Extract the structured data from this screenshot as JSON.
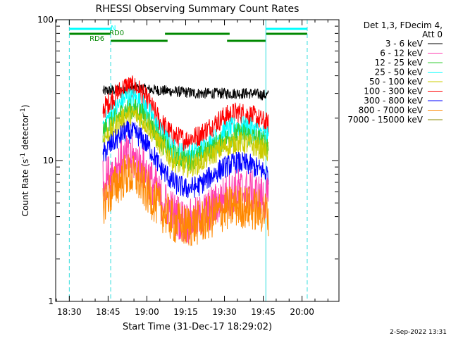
{
  "chart_data": {
    "type": "line",
    "title": "RHESSI Observing Summary Count Rates",
    "xlabel": "Start Time (31-Dec-17 18:29:02)",
    "ylabel": "Count Rate (s",
    "ylabel_sup": "-1",
    "ylabel_mid": " detector",
    "ylabel_end": ")",
    "y_scale": "log",
    "ylim": [
      1,
      100
    ],
    "y_ticks": [
      "1",
      "10",
      "100"
    ],
    "xlim_minutes_of_day": [
      1105,
      1214
    ],
    "x_ticks": [
      {
        "t": 1110,
        "label": "18:30"
      },
      {
        "t": 1125,
        "label": "18:45"
      },
      {
        "t": 1140,
        "label": "19:00"
      },
      {
        "t": 1155,
        "label": "19:15"
      },
      {
        "t": 1170,
        "label": "19:30"
      },
      {
        "t": 1185,
        "label": "19:45"
      },
      {
        "t": 1200,
        "label": "20:00"
      }
    ],
    "legend_header": [
      "Det 1,3, FDecim 4,",
      "Att 0"
    ],
    "legend_position": "right",
    "data_start": "18:43",
    "data_end": "19:47",
    "series": [
      {
        "name": "3 - 6 keV",
        "color": "#000000",
        "points": [
          [
            "18:43",
            31
          ],
          [
            "18:50",
            32
          ],
          [
            "18:55",
            33
          ],
          [
            "19:00",
            32
          ],
          [
            "19:10",
            31
          ],
          [
            "19:20",
            30
          ],
          [
            "19:30",
            30
          ],
          [
            "19:40",
            30
          ],
          [
            "19:47",
            29
          ]
        ]
      },
      {
        "name": "6 - 12 keV",
        "color": "#ff3fb0",
        "points": [
          [
            "18:43",
            7
          ],
          [
            "18:47",
            8.5
          ],
          [
            "18:52",
            10.5
          ],
          [
            "18:56",
            10
          ],
          [
            "19:00",
            8
          ],
          [
            "19:05",
            5.5
          ],
          [
            "19:10",
            4.3
          ],
          [
            "19:15",
            3.6
          ],
          [
            "19:20",
            3.9
          ],
          [
            "19:25",
            4.6
          ],
          [
            "19:30",
            5.5
          ],
          [
            "19:35",
            6.2
          ],
          [
            "19:40",
            6
          ],
          [
            "19:47",
            5.2
          ]
        ]
      },
      {
        "name": "12 - 25 keV",
        "color": "#33cc33",
        "points": [
          [
            "18:43",
            16
          ],
          [
            "18:47",
            19
          ],
          [
            "18:52",
            23
          ],
          [
            "18:56",
            23
          ],
          [
            "19:00",
            20
          ],
          [
            "19:05",
            14
          ],
          [
            "19:10",
            11
          ],
          [
            "19:15",
            10
          ],
          [
            "19:20",
            10.5
          ],
          [
            "19:25",
            12
          ],
          [
            "19:30",
            14
          ],
          [
            "19:35",
            15.5
          ],
          [
            "19:40",
            15
          ],
          [
            "19:47",
            13
          ]
        ]
      },
      {
        "name": "25 - 50 keV",
        "color": "#00ffff",
        "points": [
          [
            "18:43",
            18
          ],
          [
            "18:47",
            22
          ],
          [
            "18:52",
            28
          ],
          [
            "18:56",
            27.5
          ],
          [
            "19:00",
            23
          ],
          [
            "19:05",
            16
          ],
          [
            "19:10",
            12
          ],
          [
            "19:15",
            11
          ],
          [
            "19:20",
            11.5
          ],
          [
            "19:25",
            13.5
          ],
          [
            "19:30",
            16
          ],
          [
            "19:35",
            17.5
          ],
          [
            "19:40",
            17
          ],
          [
            "19:47",
            14.5
          ]
        ]
      },
      {
        "name": "50 - 100 keV",
        "color": "#cccc00",
        "points": [
          [
            "18:43",
            14
          ],
          [
            "18:47",
            17
          ],
          [
            "18:52",
            21
          ],
          [
            "18:56",
            21
          ],
          [
            "19:00",
            18
          ],
          [
            "19:05",
            13
          ],
          [
            "19:10",
            10
          ],
          [
            "19:15",
            9
          ],
          [
            "19:20",
            9.5
          ],
          [
            "19:25",
            11
          ],
          [
            "19:30",
            12.5
          ],
          [
            "19:35",
            13.5
          ],
          [
            "19:40",
            13
          ],
          [
            "19:47",
            11.5
          ]
        ]
      },
      {
        "name": "100 - 300 keV",
        "color": "#ff0000",
        "points": [
          [
            "18:43",
            23
          ],
          [
            "18:47",
            28
          ],
          [
            "18:52",
            34
          ],
          [
            "18:56",
            33
          ],
          [
            "19:00",
            27
          ],
          [
            "19:05",
            19
          ],
          [
            "19:10",
            15
          ],
          [
            "19:15",
            14
          ],
          [
            "19:20",
            15
          ],
          [
            "19:25",
            17.5
          ],
          [
            "19:30",
            20.5
          ],
          [
            "19:35",
            22
          ],
          [
            "19:40",
            21
          ],
          [
            "19:47",
            18
          ]
        ]
      },
      {
        "name": "300 - 800 keV",
        "color": "#0000ff",
        "points": [
          [
            "18:43",
            11
          ],
          [
            "18:47",
            13.5
          ],
          [
            "18:52",
            16
          ],
          [
            "18:56",
            15.5
          ],
          [
            "19:00",
            13
          ],
          [
            "19:05",
            9
          ],
          [
            "19:10",
            7
          ],
          [
            "19:15",
            6.3
          ],
          [
            "19:20",
            6.6
          ],
          [
            "19:25",
            7.8
          ],
          [
            "19:30",
            9
          ],
          [
            "19:35",
            9.7
          ],
          [
            "19:40",
            9.3
          ],
          [
            "19:47",
            8
          ]
        ]
      },
      {
        "name": "800 - 7000 keV",
        "color": "#ff8800",
        "points": [
          [
            "18:43",
            5
          ],
          [
            "18:47",
            6.3
          ],
          [
            "18:52",
            8
          ],
          [
            "18:56",
            7.5
          ],
          [
            "19:00",
            6
          ],
          [
            "19:05",
            4.6
          ],
          [
            "19:10",
            3.7
          ],
          [
            "19:15",
            3.4
          ],
          [
            "19:20",
            3.6
          ],
          [
            "19:25",
            4
          ],
          [
            "19:30",
            4.5
          ],
          [
            "19:35",
            4.8
          ],
          [
            "19:40",
            4.6
          ],
          [
            "19:47",
            4.2
          ]
        ]
      },
      {
        "name": "7000 - 15000 keV",
        "color": "#888800",
        "points": []
      }
    ],
    "flags": [
      {
        "label": "N",
        "color": "#00ffff",
        "segments": [
          [
            "18:30",
            "18:46"
          ],
          [
            "19:46",
            "20:02"
          ]
        ]
      },
      {
        "label": "RD0",
        "color": "#008800",
        "segments": [
          [
            "18:30",
            "18:46"
          ],
          [
            "19:07",
            "19:32"
          ],
          [
            "19:46",
            "20:02"
          ]
        ]
      },
      {
        "label": "RD6",
        "color": "#008800",
        "segments": [
          [
            "18:46",
            "19:08"
          ],
          [
            "19:31",
            "19:46"
          ]
        ]
      }
    ],
    "boundaries": [
      {
        "t": "18:30",
        "style": "dashed"
      },
      {
        "t": "18:46",
        "style": "dashed"
      },
      {
        "t": "19:46",
        "style": "solid"
      },
      {
        "t": "20:02",
        "style": "dashed"
      }
    ]
  },
  "footer": {
    "date": "2-Sep-2022 13:31"
  }
}
